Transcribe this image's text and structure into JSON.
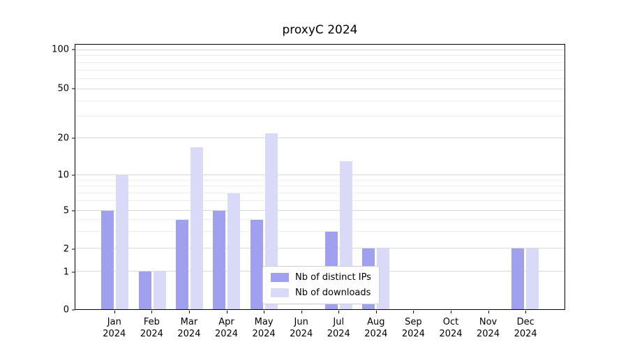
{
  "chart_data": {
    "type": "bar",
    "title": "proxyC 2024",
    "categories": [
      "Jan 2024",
      "Feb 2024",
      "Mar 2024",
      "Apr 2024",
      "May 2024",
      "Jun 2024",
      "Jul 2024",
      "Aug 2024",
      "Sep 2024",
      "Oct 2024",
      "Nov 2024",
      "Dec 2024"
    ],
    "series": [
      {
        "name": "Nb of distinct IPs",
        "color": "#a0a0f0",
        "values": [
          5,
          1,
          4,
          5,
          4,
          0,
          3,
          2,
          0,
          0,
          0,
          2
        ]
      },
      {
        "name": "Nb of downloads",
        "color": "#d9d9f8",
        "values": [
          10,
          1,
          17,
          7,
          22,
          0,
          13,
          2,
          0,
          0,
          0,
          2
        ]
      }
    ],
    "xlabel": "",
    "ylabel": "",
    "yscale": "log-with-zero",
    "yticks": [
      0,
      1,
      2,
      5,
      10,
      20,
      50,
      100
    ],
    "ylim": [
      0,
      130
    ],
    "grid": "horizontal major+minor",
    "legend_position": "inside-bottom-center"
  }
}
